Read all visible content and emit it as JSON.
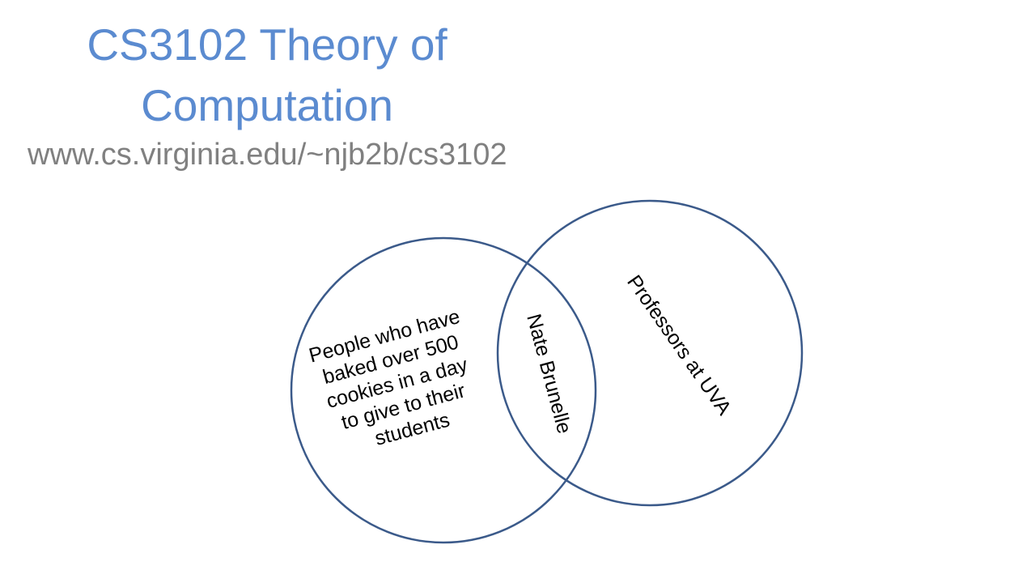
{
  "slide": {
    "title_line1": "CS3102 Theory of",
    "title_line2": "Computation",
    "url": "www.cs.virginia.edu/~njb2b/cs3102"
  },
  "venn": {
    "left_lines": [
      "People who have",
      "baked over 500",
      "cookies in a day",
      "to give to their",
      "students"
    ],
    "intersection_label": "Nate Brunelle",
    "right_label": "Professors at UVA"
  },
  "colors": {
    "title": "#5b8bd0",
    "subtitle": "#808080",
    "circle_stroke": "#3b5a8a"
  }
}
